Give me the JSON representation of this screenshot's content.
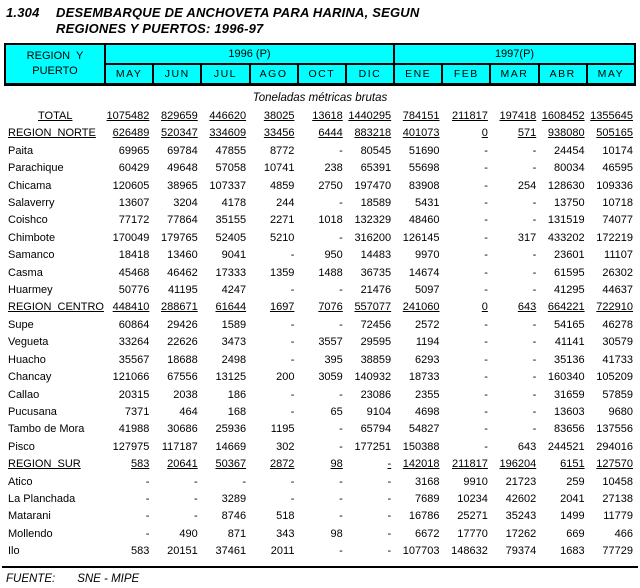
{
  "title": {
    "number": "1.304",
    "line1": "DESEMBARQUE DE ANCHOVETA PARA HARINA, SEGUN",
    "line2": "REGIONES Y PUERTOS: 1996-97"
  },
  "header": {
    "region_label_line1": "REGION  Y",
    "region_label_line2": "PUERTO",
    "groups": [
      {
        "label": "1996 (P)",
        "months": [
          "MAY",
          "JUN",
          "JUL",
          "AGO",
          "OCT",
          "DIC"
        ]
      },
      {
        "label": "1997(P)",
        "months": [
          "ENE",
          "FEB",
          "MAR",
          "ABR",
          "MAY"
        ]
      }
    ]
  },
  "subtitle": "Toneladas métricas brutas",
  "rows": [
    {
      "label": "TOTAL",
      "style": "total",
      "values": [
        "1075482",
        "829659",
        "446620",
        "38025",
        "13618",
        "1440295",
        "784151",
        "211817",
        "197418",
        "1608452",
        "1355645"
      ]
    },
    {
      "label": "REGION  NORTE",
      "style": "region",
      "values": [
        "626489",
        "520347",
        "334609",
        "33456",
        "6444",
        "883218",
        "401073",
        "0",
        "571",
        "938080",
        "505165"
      ]
    },
    {
      "label": "Paita",
      "style": "port",
      "values": [
        "69965",
        "69784",
        "47855",
        "8772",
        "-",
        "80545",
        "51690",
        "-",
        "-",
        "24454",
        "10174"
      ]
    },
    {
      "label": "Parachique",
      "style": "port",
      "values": [
        "60429",
        "49648",
        "57058",
        "10741",
        "238",
        "65391",
        "55698",
        "-",
        "-",
        "80034",
        "46595"
      ]
    },
    {
      "label": "Chicama",
      "style": "port",
      "values": [
        "120605",
        "38965",
        "107337",
        "4859",
        "2750",
        "197470",
        "83908",
        "-",
        "254",
        "128630",
        "109336"
      ]
    },
    {
      "label": "Salaverry",
      "style": "port",
      "values": [
        "13607",
        "3204",
        "4178",
        "244",
        "-",
        "18589",
        "5431",
        "-",
        "-",
        "13750",
        "10718"
      ]
    },
    {
      "label": "Coishco",
      "style": "port",
      "values": [
        "77172",
        "77864",
        "35155",
        "2271",
        "1018",
        "132329",
        "48460",
        "-",
        "-",
        "131519",
        "74077"
      ]
    },
    {
      "label": "Chimbote",
      "style": "port",
      "values": [
        "170049",
        "179765",
        "52405",
        "5210",
        "-",
        "316200",
        "126145",
        "-",
        "317",
        "433202",
        "172219"
      ]
    },
    {
      "label": "Samanco",
      "style": "port",
      "values": [
        "18418",
        "13460",
        "9041",
        "-",
        "950",
        "14483",
        "9970",
        "-",
        "-",
        "23601",
        "11107"
      ]
    },
    {
      "label": "Casma",
      "style": "port",
      "values": [
        "45468",
        "46462",
        "17333",
        "1359",
        "1488",
        "36735",
        "14674",
        "-",
        "-",
        "61595",
        "26302"
      ]
    },
    {
      "label": "Huarmey",
      "style": "port",
      "values": [
        "50776",
        "41195",
        "4247",
        "-",
        "-",
        "21476",
        "5097",
        "-",
        "-",
        "41295",
        "44637"
      ]
    },
    {
      "label": "REGION  CENTRO",
      "style": "region",
      "values": [
        "448410",
        "288671",
        "61644",
        "1697",
        "7076",
        "557077",
        "241060",
        "0",
        "643",
        "664221",
        "722910"
      ]
    },
    {
      "label": "Supe",
      "style": "port",
      "values": [
        "60864",
        "29426",
        "1589",
        "-",
        "-",
        "72456",
        "2572",
        "-",
        "-",
        "54165",
        "46278"
      ]
    },
    {
      "label": "Vegueta",
      "style": "port",
      "values": [
        "33264",
        "22626",
        "3473",
        "-",
        "3557",
        "29595",
        "1194",
        "-",
        "-",
        "41141",
        "30579"
      ]
    },
    {
      "label": "Huacho",
      "style": "port",
      "values": [
        "35567",
        "18688",
        "2498",
        "-",
        "395",
        "38859",
        "6293",
        "-",
        "-",
        "35136",
        "41733"
      ]
    },
    {
      "label": "Chancay",
      "style": "port",
      "values": [
        "121066",
        "67556",
        "13125",
        "200",
        "3059",
        "140932",
        "18733",
        "-",
        "-",
        "160340",
        "105209"
      ]
    },
    {
      "label": "Callao",
      "style": "port",
      "values": [
        "20315",
        "2038",
        "186",
        "-",
        "-",
        "23086",
        "2355",
        "-",
        "-",
        "31659",
        "57859"
      ]
    },
    {
      "label": "Pucusana",
      "style": "port",
      "values": [
        "7371",
        "464",
        "168",
        "-",
        "65",
        "9104",
        "4698",
        "-",
        "-",
        "13603",
        "9680"
      ]
    },
    {
      "label": "Tambo de Mora",
      "style": "port",
      "values": [
        "41988",
        "30686",
        "25936",
        "1195",
        "-",
        "65794",
        "54827",
        "-",
        "-",
        "83656",
        "137556"
      ]
    },
    {
      "label": "Pisco",
      "style": "port",
      "values": [
        "127975",
        "117187",
        "14669",
        "302",
        "-",
        "177251",
        "150388",
        "-",
        "643",
        "244521",
        "294016"
      ]
    },
    {
      "label": "REGION  SUR",
      "style": "region",
      "values": [
        "583",
        "20641",
        "50367",
        "2872",
        "98",
        "-",
        "142018",
        "211817",
        "196204",
        "6151",
        "127570"
      ]
    },
    {
      "label": "Atico",
      "style": "port",
      "values": [
        "-",
        "-",
        "-",
        "-",
        "-",
        "-",
        "3168",
        "9910",
        "21723",
        "259",
        "10458"
      ]
    },
    {
      "label": "La Planchada",
      "style": "port",
      "values": [
        "-",
        "-",
        "3289",
        "-",
        "-",
        "-",
        "7689",
        "10234",
        "42602",
        "2041",
        "27138"
      ]
    },
    {
      "label": "Matarani",
      "style": "port",
      "values": [
        "-",
        "-",
        "8746",
        "518",
        "-",
        "-",
        "16786",
        "25271",
        "35243",
        "1499",
        "11779"
      ]
    },
    {
      "label": "Mollendo",
      "style": "port",
      "values": [
        "-",
        "490",
        "871",
        "343",
        "98",
        "-",
        "6672",
        "17770",
        "17262",
        "669",
        "466"
      ]
    },
    {
      "label": "Ilo",
      "style": "port",
      "values": [
        "583",
        "20151",
        "37461",
        "2011",
        "-",
        "-",
        "107703",
        "148632",
        "79374",
        "1683",
        "77729"
      ]
    }
  ],
  "footer": {
    "source_label": "FUENTE:",
    "source_value": "SNE - MIPE"
  },
  "colors": {
    "header_bg": "#00ffff",
    "border": "#000000",
    "text": "#000000",
    "page_bg": "#ffffff"
  }
}
